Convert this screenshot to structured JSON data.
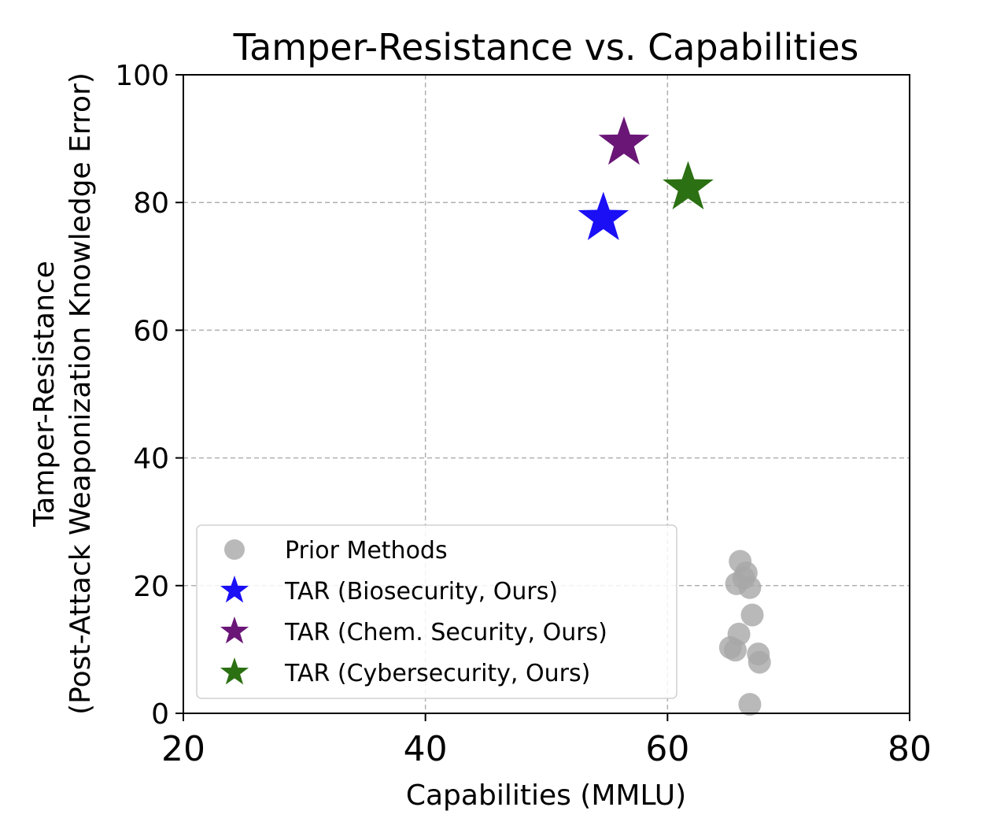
{
  "chart_data": {
    "type": "scatter",
    "title": "Tamper-Resistance vs. Capabilities",
    "xlabel": "Capabilities (MMLU)",
    "ylabel": [
      "Tamper-Resistance",
      "(Post-Attack Weaponization Knowledge Error)"
    ],
    "xlim": [
      20,
      80
    ],
    "ylim": [
      0,
      100
    ],
    "xticks": [
      20,
      40,
      60,
      80
    ],
    "yticks": [
      0,
      20,
      40,
      60,
      80,
      100
    ],
    "grid": true,
    "legend_position": "lower-left",
    "series": [
      {
        "name": "Prior Methods",
        "marker": "circle",
        "color": "#a8a8a8",
        "points": [
          {
            "x": 66.0,
            "y": 23.8
          },
          {
            "x": 66.5,
            "y": 22.0
          },
          {
            "x": 66.3,
            "y": 21.2
          },
          {
            "x": 65.7,
            "y": 20.3
          },
          {
            "x": 66.8,
            "y": 19.7
          },
          {
            "x": 67.0,
            "y": 15.4
          },
          {
            "x": 65.9,
            "y": 12.4
          },
          {
            "x": 65.2,
            "y": 10.3
          },
          {
            "x": 65.6,
            "y": 9.9
          },
          {
            "x": 67.5,
            "y": 9.3
          },
          {
            "x": 67.6,
            "y": 8.0
          },
          {
            "x": 66.8,
            "y": 1.4
          }
        ]
      },
      {
        "name": "TAR (Biosecurity, Ours)",
        "marker": "star",
        "color": "#1a0ff5",
        "points": [
          {
            "x": 54.7,
            "y": 77.5
          }
        ]
      },
      {
        "name": "TAR (Chem. Security, Ours)",
        "marker": "star",
        "color": "#6a1677",
        "points": [
          {
            "x": 56.4,
            "y": 89.3
          }
        ]
      },
      {
        "name": "TAR (Cybersecurity, Ours)",
        "marker": "star",
        "color": "#2b7012",
        "points": [
          {
            "x": 61.7,
            "y": 82.3
          }
        ]
      }
    ]
  }
}
